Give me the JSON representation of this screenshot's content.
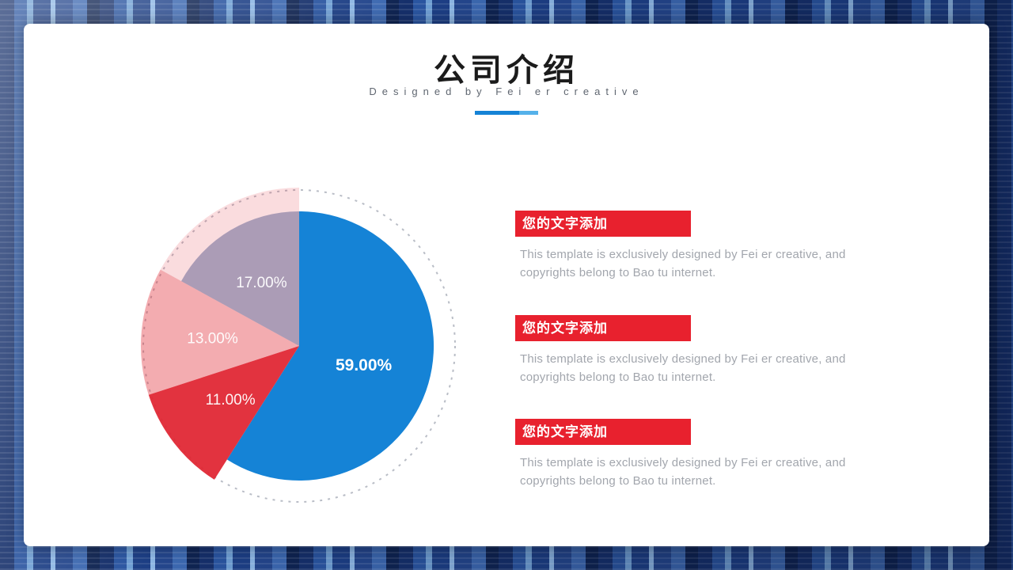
{
  "page": {
    "title": "公司介绍",
    "subtitle": "Designed by Fei er creative"
  },
  "colors": {
    "accent_blue": "#1583d6",
    "accent_red": "#e8212e",
    "body_text_gray": "#a2a6ad"
  },
  "chart_data": {
    "type": "pie",
    "title": "",
    "unit": "percent",
    "start_angle_deg": -90,
    "direction": "clockwise",
    "guide_circle_radius": 197,
    "slices": [
      {
        "label": "59.00%",
        "value": 59,
        "color": "#1583d6",
        "opacity": 1,
        "radius": 170,
        "label_r": 0.5,
        "bold": true
      },
      {
        "label": "11.00%",
        "value": 11,
        "color": "#e02430",
        "opacity": 0.93,
        "radius": 200,
        "label_r": 0.55,
        "bold": false
      },
      {
        "label": "13.00%",
        "value": 13,
        "color": "#e02430",
        "opacity": 0.38,
        "radius": 200,
        "label_r": 0.55,
        "bold": false
      },
      {
        "label": "17.00%",
        "value": 17,
        "color": "#6a6896",
        "opacity": 0.55,
        "radius": 170,
        "label_r": 0.55,
        "bold": false
      }
    ],
    "overlays": [
      {
        "from_pct": 83,
        "to_pct": 100,
        "radius": 200,
        "color": "#e02430",
        "opacity": 0.16
      }
    ]
  },
  "content_blocks": [
    {
      "heading": "您的文字添加",
      "body": "This template is exclusively designed by Fei er creative, and copyrights belong to Bao tu internet."
    },
    {
      "heading": "您的文字添加",
      "body": "This template is exclusively designed by Fei er creative, and copyrights belong to Bao tu internet."
    },
    {
      "heading": "您的文字添加",
      "body": "This template is exclusively designed by Fei er creative, and copyrights belong to Bao tu internet."
    }
  ]
}
